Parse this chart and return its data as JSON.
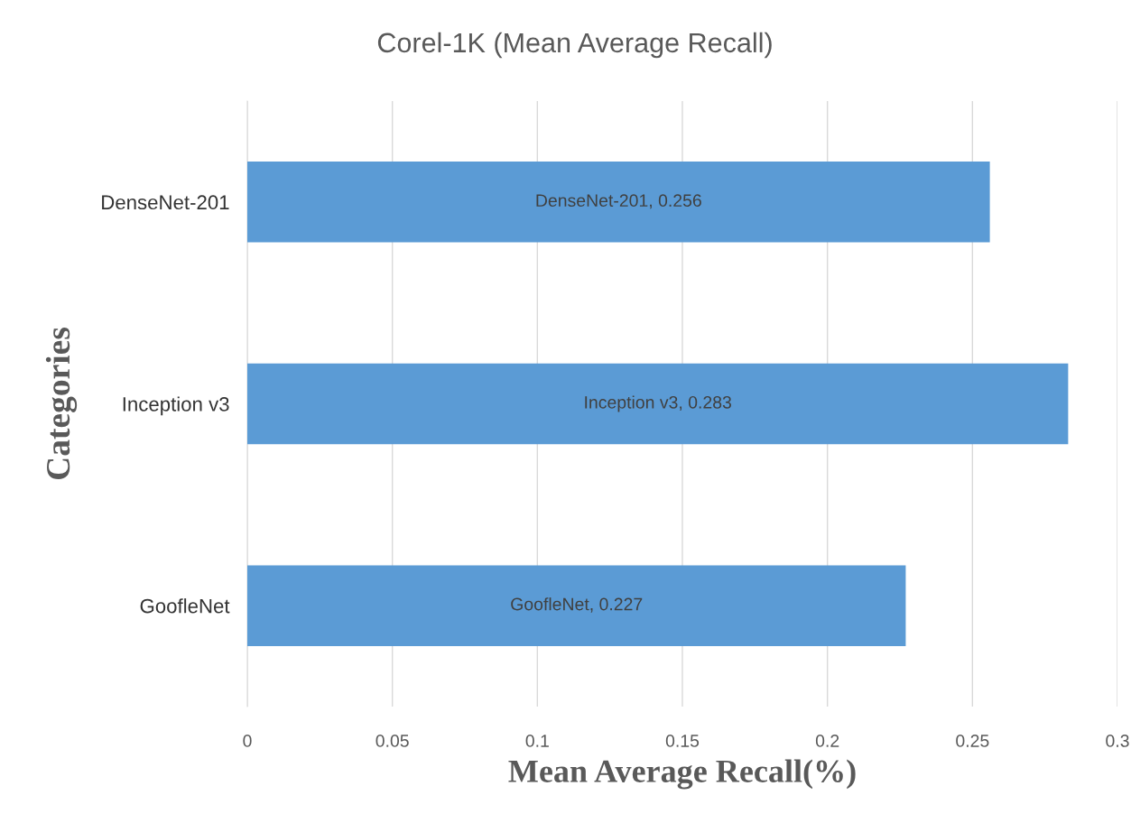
{
  "chart_data": {
    "type": "bar",
    "orientation": "horizontal",
    "title": "Corel-1K (Mean Average Recall)",
    "xlabel": "Mean Average Recall(%)",
    "ylabel": "Categories",
    "categories": [
      "DenseNet-201",
      "Inception v3",
      "GoofleNet"
    ],
    "values": [
      0.256,
      0.283,
      0.227
    ],
    "color": "#5b9bd5",
    "value_labels": [
      "DenseNet-201, 0.256",
      "Inception v3, 0.283",
      "GoofleNet, 0.227"
    ],
    "xlim": [
      0,
      0.3
    ],
    "xticks": [
      0,
      0.05,
      0.1,
      0.15,
      0.2,
      0.25,
      0.3
    ],
    "grid": "x"
  }
}
